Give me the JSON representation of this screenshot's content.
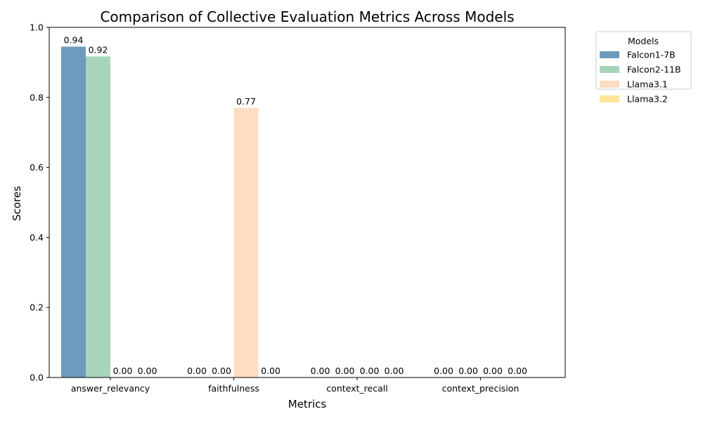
{
  "chart_data": {
    "type": "bar",
    "title": "Comparison of Collective Evaluation Metrics Across Models",
    "xlabel": "Metrics",
    "ylabel": "Scores",
    "ylim": [
      0,
      1
    ],
    "yticks": [
      "0.0",
      "0.2",
      "0.4",
      "0.6",
      "0.8",
      "1.0"
    ],
    "categories": [
      "answer_relevancy",
      "faithfulness",
      "context_recall",
      "context_precision"
    ],
    "legend": {
      "title": "Models",
      "placement": "outside-top-right"
    },
    "series": [
      {
        "name": "Falcon1-7B",
        "color": "#6e9bbd",
        "values": [
          0.945,
          0,
          0,
          0
        ],
        "labels": [
          "0.94",
          "0.00",
          "0.00",
          "0.00"
        ]
      },
      {
        "name": "Falcon2-11B",
        "color": "#a8d5ba",
        "values": [
          0.917,
          0,
          0,
          0
        ],
        "labels": [
          "0.92",
          "0.00",
          "0.00",
          "0.00"
        ]
      },
      {
        "name": "Llama3.1",
        "color": "#ffdcc2",
        "values": [
          0,
          0.77,
          0,
          0
        ],
        "labels": [
          "0.00",
          "0.77",
          "0.00",
          "0.00"
        ]
      },
      {
        "name": "Llama3.2",
        "color": "#ffe699",
        "values": [
          0,
          0,
          0,
          0
        ],
        "labels": [
          "0.00",
          "0.00",
          "0.00",
          "0.00"
        ]
      }
    ]
  }
}
